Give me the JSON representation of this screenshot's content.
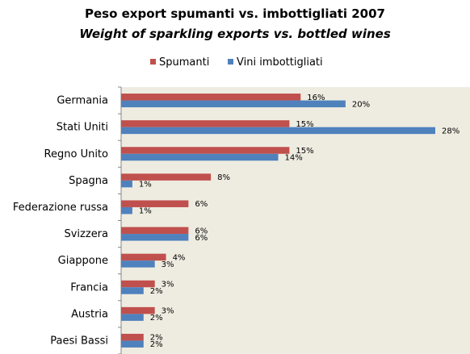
{
  "chart_data": {
    "type": "bar",
    "orientation": "horizontal",
    "title": "Peso export spumanti vs. imbottigliati 2007",
    "subtitle": "Weight of sparkling exports vs. bottled wines",
    "categories": [
      "Germania",
      "Stati Uniti",
      "Regno Unito",
      "Spagna",
      "Federazione russa",
      "Svizzera",
      "Giappone",
      "Francia",
      "Austria",
      "Paesi Bassi"
    ],
    "series": [
      {
        "name": "Spumanti",
        "color": "#c0504d",
        "values": [
          16,
          15,
          15,
          8,
          6,
          6,
          4,
          3,
          3,
          2
        ],
        "labels": [
          "16%",
          "15%",
          "15%",
          "8%",
          "6%",
          "6%",
          "4%",
          "3%",
          "3%",
          "2%"
        ]
      },
      {
        "name": "Vini imbottigliati",
        "color": "#4f81bd",
        "values": [
          20,
          28,
          14,
          1,
          1,
          6,
          3,
          2,
          2,
          2
        ],
        "labels": [
          "20%",
          "28%",
          "14%",
          "1%",
          "1%",
          "6%",
          "3%",
          "2%",
          "2%",
          "2%"
        ]
      }
    ],
    "xlim": [
      0,
      28
    ],
    "unit": "%",
    "legend": "top",
    "grid": false,
    "plot_background": "#eeece1"
  }
}
